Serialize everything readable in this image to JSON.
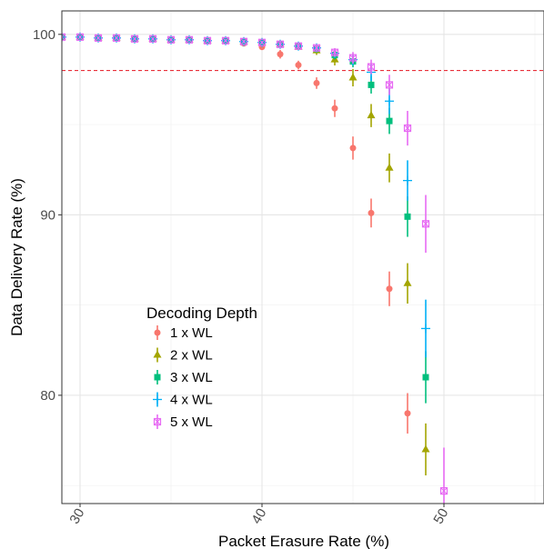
{
  "chart_data": {
    "type": "scatter",
    "title": "",
    "xlabel": "Packet Erasure Rate (%)",
    "ylabel": "Data Delivery  Rate (%)",
    "xlim": [
      29,
      55.5
    ],
    "ylim": [
      74,
      101.3
    ],
    "x_ticks": [
      30,
      40,
      50
    ],
    "y_ticks": [
      80,
      90,
      100
    ],
    "grid": true,
    "threshold_line": {
      "y": 98,
      "color": "#e8303a",
      "style": "dashed"
    },
    "legend": {
      "title": "Decoding Depth",
      "position": "bottom-left"
    },
    "series": [
      {
        "name": "1 x WL",
        "color": "#f8766d",
        "marker": "circle",
        "points": [
          {
            "x": 29,
            "y": 99.85,
            "err": 0.05
          },
          {
            "x": 30,
            "y": 99.85,
            "err": 0.05
          },
          {
            "x": 31,
            "y": 99.8,
            "err": 0.05
          },
          {
            "x": 32,
            "y": 99.8,
            "err": 0.05
          },
          {
            "x": 33,
            "y": 99.75,
            "err": 0.05
          },
          {
            "x": 34,
            "y": 99.75,
            "err": 0.05
          },
          {
            "x": 35,
            "y": 99.7,
            "err": 0.05
          },
          {
            "x": 36,
            "y": 99.7,
            "err": 0.05
          },
          {
            "x": 37,
            "y": 99.65,
            "err": 0.05
          },
          {
            "x": 38,
            "y": 99.65,
            "err": 0.05
          },
          {
            "x": 39,
            "y": 99.5,
            "err": 0.1
          },
          {
            "x": 40,
            "y": 99.3,
            "err": 0.1
          },
          {
            "x": 41,
            "y": 98.9,
            "err": 0.15
          },
          {
            "x": 42,
            "y": 98.3,
            "err": 0.15
          },
          {
            "x": 43,
            "y": 97.3,
            "err": 0.2
          },
          {
            "x": 44,
            "y": 95.9,
            "err": 0.3
          },
          {
            "x": 45,
            "y": 93.7,
            "err": 0.4
          },
          {
            "x": 46,
            "y": 90.1,
            "err": 0.5
          },
          {
            "x": 47,
            "y": 85.9,
            "err": 0.6
          },
          {
            "x": 48,
            "y": 79.0,
            "err": 0.7
          }
        ]
      },
      {
        "name": "2 x WL",
        "color": "#a3a500",
        "marker": "triangle",
        "points": [
          {
            "x": 29,
            "y": 99.85,
            "err": 0.05
          },
          {
            "x": 30,
            "y": 99.85,
            "err": 0.05
          },
          {
            "x": 31,
            "y": 99.8,
            "err": 0.05
          },
          {
            "x": 32,
            "y": 99.8,
            "err": 0.05
          },
          {
            "x": 33,
            "y": 99.75,
            "err": 0.05
          },
          {
            "x": 34,
            "y": 99.75,
            "err": 0.05
          },
          {
            "x": 35,
            "y": 99.7,
            "err": 0.05
          },
          {
            "x": 36,
            "y": 99.7,
            "err": 0.05
          },
          {
            "x": 37,
            "y": 99.65,
            "err": 0.05
          },
          {
            "x": 38,
            "y": 99.65,
            "err": 0.05
          },
          {
            "x": 39,
            "y": 99.6,
            "err": 0.05
          },
          {
            "x": 40,
            "y": 99.55,
            "err": 0.05
          },
          {
            "x": 41,
            "y": 99.45,
            "err": 0.1
          },
          {
            "x": 42,
            "y": 99.3,
            "err": 0.1
          },
          {
            "x": 43,
            "y": 99.1,
            "err": 0.15
          },
          {
            "x": 44,
            "y": 98.6,
            "err": 0.2
          },
          {
            "x": 45,
            "y": 97.6,
            "err": 0.3
          },
          {
            "x": 46,
            "y": 95.5,
            "err": 0.4
          },
          {
            "x": 47,
            "y": 92.6,
            "err": 0.5
          },
          {
            "x": 48,
            "y": 86.2,
            "err": 0.7
          },
          {
            "x": 49,
            "y": 77.0,
            "err": 0.9
          }
        ]
      },
      {
        "name": "3 x WL",
        "color": "#00bf7d",
        "marker": "square",
        "points": [
          {
            "x": 29,
            "y": 99.85,
            "err": 0.05
          },
          {
            "x": 30,
            "y": 99.85,
            "err": 0.05
          },
          {
            "x": 31,
            "y": 99.8,
            "err": 0.05
          },
          {
            "x": 32,
            "y": 99.8,
            "err": 0.05
          },
          {
            "x": 33,
            "y": 99.75,
            "err": 0.05
          },
          {
            "x": 34,
            "y": 99.75,
            "err": 0.05
          },
          {
            "x": 35,
            "y": 99.7,
            "err": 0.05
          },
          {
            "x": 36,
            "y": 99.7,
            "err": 0.05
          },
          {
            "x": 37,
            "y": 99.65,
            "err": 0.05
          },
          {
            "x": 38,
            "y": 99.65,
            "err": 0.05
          },
          {
            "x": 39,
            "y": 99.6,
            "err": 0.05
          },
          {
            "x": 40,
            "y": 99.55,
            "err": 0.05
          },
          {
            "x": 41,
            "y": 99.45,
            "err": 0.1
          },
          {
            "x": 42,
            "y": 99.35,
            "err": 0.1
          },
          {
            "x": 43,
            "y": 99.2,
            "err": 0.1
          },
          {
            "x": 44,
            "y": 98.85,
            "err": 0.15
          },
          {
            "x": 45,
            "y": 98.5,
            "err": 0.2
          },
          {
            "x": 46,
            "y": 97.2,
            "err": 0.3
          },
          {
            "x": 47,
            "y": 95.2,
            "err": 0.45
          },
          {
            "x": 48,
            "y": 89.9,
            "err": 0.7
          },
          {
            "x": 49,
            "y": 81.0,
            "err": 0.9
          }
        ]
      },
      {
        "name": "4 x WL",
        "color": "#00b0f6",
        "marker": "plus",
        "points": [
          {
            "x": 29,
            "y": 99.85,
            "err": 0.05
          },
          {
            "x": 30,
            "y": 99.85,
            "err": 0.05
          },
          {
            "x": 31,
            "y": 99.8,
            "err": 0.05
          },
          {
            "x": 32,
            "y": 99.8,
            "err": 0.05
          },
          {
            "x": 33,
            "y": 99.75,
            "err": 0.05
          },
          {
            "x": 34,
            "y": 99.75,
            "err": 0.05
          },
          {
            "x": 35,
            "y": 99.7,
            "err": 0.05
          },
          {
            "x": 36,
            "y": 99.7,
            "err": 0.05
          },
          {
            "x": 37,
            "y": 99.65,
            "err": 0.05
          },
          {
            "x": 38,
            "y": 99.65,
            "err": 0.05
          },
          {
            "x": 39,
            "y": 99.6,
            "err": 0.05
          },
          {
            "x": 40,
            "y": 99.55,
            "err": 0.05
          },
          {
            "x": 41,
            "y": 99.45,
            "err": 0.1
          },
          {
            "x": 42,
            "y": 99.35,
            "err": 0.1
          },
          {
            "x": 43,
            "y": 99.25,
            "err": 0.1
          },
          {
            "x": 44,
            "y": 98.95,
            "err": 0.15
          },
          {
            "x": 45,
            "y": 98.6,
            "err": 0.2
          },
          {
            "x": 46,
            "y": 97.9,
            "err": 0.3
          },
          {
            "x": 47,
            "y": 96.3,
            "err": 0.45
          },
          {
            "x": 48,
            "y": 91.9,
            "err": 0.7
          },
          {
            "x": 49,
            "y": 83.7,
            "err": 1.0
          }
        ]
      },
      {
        "name": "5 x WL",
        "color": "#e76bf3",
        "marker": "square-cross",
        "points": [
          {
            "x": 29,
            "y": 99.85,
            "err": 0.05
          },
          {
            "x": 30,
            "y": 99.85,
            "err": 0.05
          },
          {
            "x": 31,
            "y": 99.8,
            "err": 0.05
          },
          {
            "x": 32,
            "y": 99.8,
            "err": 0.05
          },
          {
            "x": 33,
            "y": 99.75,
            "err": 0.05
          },
          {
            "x": 34,
            "y": 99.75,
            "err": 0.05
          },
          {
            "x": 35,
            "y": 99.7,
            "err": 0.05
          },
          {
            "x": 36,
            "y": 99.7,
            "err": 0.05
          },
          {
            "x": 37,
            "y": 99.65,
            "err": 0.05
          },
          {
            "x": 38,
            "y": 99.65,
            "err": 0.05
          },
          {
            "x": 39,
            "y": 99.6,
            "err": 0.05
          },
          {
            "x": 40,
            "y": 99.55,
            "err": 0.05
          },
          {
            "x": 41,
            "y": 99.45,
            "err": 0.1
          },
          {
            "x": 42,
            "y": 99.35,
            "err": 0.1
          },
          {
            "x": 43,
            "y": 99.25,
            "err": 0.1
          },
          {
            "x": 44,
            "y": 99.0,
            "err": 0.15
          },
          {
            "x": 45,
            "y": 98.7,
            "err": 0.2
          },
          {
            "x": 46,
            "y": 98.2,
            "err": 0.25
          },
          {
            "x": 47,
            "y": 97.2,
            "err": 0.35
          },
          {
            "x": 48,
            "y": 94.8,
            "err": 0.6
          },
          {
            "x": 49,
            "y": 89.5,
            "err": 1.0
          },
          {
            "x": 50,
            "y": 74.7,
            "err": 1.5
          }
        ]
      }
    ]
  }
}
